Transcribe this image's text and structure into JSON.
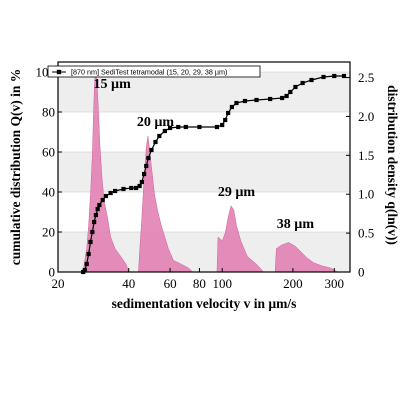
{
  "chart_data": {
    "type": "area",
    "x_axis": {
      "label": "sedimentation velocity v in µm/s",
      "scale": "log",
      "range": [
        20,
        350
      ],
      "ticks": [
        20,
        40,
        60,
        80,
        100,
        200,
        300
      ]
    },
    "y_left": {
      "label": "cumulative distribution Q(v) in %",
      "range": [
        0,
        105
      ],
      "ticks": [
        0,
        20,
        40,
        60,
        80,
        100
      ]
    },
    "y_right": {
      "label": "distribution density q(ln(v))",
      "range": [
        0,
        2.7
      ],
      "ticks": [
        0,
        0.5,
        1.0,
        1.5,
        2.0,
        2.5
      ],
      "tick_labels": [
        "0",
        "0.5",
        "1.0",
        "1.5",
        "2.0",
        "2.5"
      ]
    },
    "grid": true,
    "legend": {
      "position": "top",
      "entries": [
        "[870 nm] SediTest tetramodal (15, 20, 29, 38 µm)"
      ]
    },
    "series": [
      {
        "name": "[870 nm] SediTest tetramodal (15, 20, 29, 38 µm)",
        "type": "line",
        "axis": "left",
        "color": "#000000",
        "points": [
          [
            25.6,
            0
          ],
          [
            26.0,
            1
          ],
          [
            26.5,
            4
          ],
          [
            27.0,
            9
          ],
          [
            27.5,
            15
          ],
          [
            28.0,
            20
          ],
          [
            28.5,
            25
          ],
          [
            29.0,
            28.5
          ],
          [
            29.5,
            31.5
          ],
          [
            30.0,
            33.5
          ],
          [
            31.0,
            36
          ],
          [
            32.0,
            38
          ],
          [
            33.5,
            39.5
          ],
          [
            35.0,
            40.5
          ],
          [
            38.0,
            41.5
          ],
          [
            41.0,
            42
          ],
          [
            43.0,
            42
          ],
          [
            44.5,
            43
          ],
          [
            45.5,
            45
          ],
          [
            46.5,
            49
          ],
          [
            47.5,
            53
          ],
          [
            48.5,
            57
          ],
          [
            50.0,
            61
          ],
          [
            52.0,
            65
          ],
          [
            54.0,
            68
          ],
          [
            57.0,
            70.5
          ],
          [
            60.0,
            72
          ],
          [
            65.0,
            72.5
          ],
          [
            70.0,
            72.5
          ],
          [
            80.0,
            72.5
          ],
          [
            95.0,
            72.5
          ],
          [
            100.0,
            73.5
          ],
          [
            103.0,
            76
          ],
          [
            106.0,
            79.5
          ],
          [
            110.0,
            82.5
          ],
          [
            115.0,
            84.5
          ],
          [
            125.0,
            85.5
          ],
          [
            140.0,
            86
          ],
          [
            160.0,
            86.5
          ],
          [
            180.0,
            87
          ],
          [
            188.0,
            88
          ],
          [
            195.0,
            90
          ],
          [
            205.0,
            92.5
          ],
          [
            220.0,
            94.5
          ],
          [
            240.0,
            96
          ],
          [
            270.0,
            97.5
          ],
          [
            300.0,
            98
          ],
          [
            330.0,
            98
          ]
        ]
      },
      {
        "name": "",
        "type": "area",
        "axis": "right",
        "color": "#e07ab0",
        "points": [
          [
            25.6,
            0
          ],
          [
            26.0,
            0.15
          ],
          [
            26.5,
            0.3
          ],
          [
            27.0,
            0.6
          ],
          [
            27.5,
            1.0
          ],
          [
            28.0,
            1.5
          ],
          [
            28.3,
            2.0
          ],
          [
            28.6,
            2.4
          ],
          [
            28.9,
            2.6
          ],
          [
            29.3,
            2.45
          ],
          [
            29.7,
            2.1
          ],
          [
            30.2,
            1.6
          ],
          [
            30.8,
            1.2
          ],
          [
            31.5,
            0.9
          ],
          [
            32.5,
            0.7
          ],
          [
            33.5,
            0.45
          ],
          [
            35.0,
            0.3
          ],
          [
            37.0,
            0.2
          ],
          [
            39.0,
            0.1
          ],
          [
            40.0,
            0
          ],
          [
            44.0,
            0
          ],
          [
            44.5,
            0.25
          ],
          [
            45.5,
            0.7
          ],
          [
            46.5,
            1.2
          ],
          [
            47.5,
            1.6
          ],
          [
            48.3,
            1.75
          ],
          [
            49.0,
            1.6
          ],
          [
            50.0,
            1.35
          ],
          [
            51.5,
            1.0
          ],
          [
            53.0,
            0.8
          ],
          [
            55.0,
            0.6
          ],
          [
            57.0,
            0.45
          ],
          [
            59.0,
            0.3
          ],
          [
            62.0,
            0.15
          ],
          [
            67.0,
            0.1
          ],
          [
            72.0,
            0.05
          ],
          [
            75.0,
            0
          ],
          [
            95.0,
            0
          ],
          [
            96.0,
            0.45
          ],
          [
            100.0,
            0.4
          ],
          [
            103.0,
            0.5
          ],
          [
            106.0,
            0.7
          ],
          [
            109.0,
            0.85
          ],
          [
            112.0,
            0.8
          ],
          [
            115.0,
            0.6
          ],
          [
            120.0,
            0.4
          ],
          [
            128.0,
            0.2
          ],
          [
            140.0,
            0.1
          ],
          [
            150.0,
            0
          ],
          [
            168.0,
            0
          ],
          [
            170.0,
            0.3
          ],
          [
            180.0,
            0.35
          ],
          [
            192.0,
            0.38
          ],
          [
            205.0,
            0.33
          ],
          [
            218.0,
            0.25
          ],
          [
            230.0,
            0.18
          ],
          [
            245.0,
            0.12
          ],
          [
            265.0,
            0.08
          ],
          [
            290.0,
            0.05
          ],
          [
            310.0,
            0
          ]
        ]
      }
    ],
    "annotations": [
      {
        "text": "15 µm",
        "x": 34,
        "y_left": 92
      },
      {
        "text": "20 µm",
        "x": 52,
        "y_left": 73
      },
      {
        "text": "29 µm",
        "x": 115,
        "y_left": 38
      },
      {
        "text": "38 µm",
        "x": 205,
        "y_left": 22
      }
    ]
  }
}
